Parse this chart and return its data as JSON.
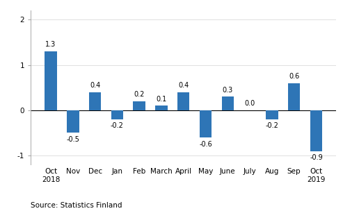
{
  "categories": [
    "Oct\n2018",
    "Nov",
    "Dec",
    "Jan",
    "Feb",
    "March",
    "April",
    "May",
    "June",
    "July",
    "Aug",
    "Sep",
    "Oct\n2019"
  ],
  "values": [
    1.3,
    -0.5,
    0.4,
    -0.2,
    0.2,
    0.1,
    0.4,
    -0.6,
    0.3,
    0.0,
    -0.2,
    0.6,
    -0.9
  ],
  "bar_color": "#2E75B6",
  "ylim": [
    -1.2,
    2.2
  ],
  "yticks": [
    -1,
    0,
    1,
    2
  ],
  "source_text": "Source: Statistics Finland",
  "background_color": "#ffffff",
  "label_fontsize": 7.0,
  "tick_fontsize": 7.5,
  "source_fontsize": 7.5,
  "bar_width": 0.55
}
